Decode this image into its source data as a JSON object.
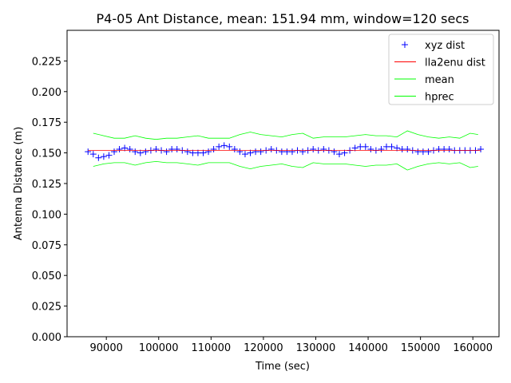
{
  "chart_data": {
    "type": "line",
    "title": "P4-05 Ant Distance, mean: 151.94 mm, window=120 secs",
    "xlabel": "Time (sec)",
    "ylabel": "Antenna Distance (m)",
    "xlim": [
      82500,
      165000
    ],
    "ylim": [
      0.0,
      0.25
    ],
    "xticks": [
      90000,
      100000,
      110000,
      120000,
      130000,
      140000,
      150000,
      160000
    ],
    "xtick_labels": [
      "90000",
      "100000",
      "110000",
      "120000",
      "130000",
      "140000",
      "150000",
      "160000"
    ],
    "yticks": [
      0.0,
      0.025,
      0.05,
      0.075,
      0.1,
      0.125,
      0.15,
      0.175,
      0.2,
      0.225
    ],
    "ytick_labels": [
      "0.000",
      "0.025",
      "0.050",
      "0.075",
      "0.100",
      "0.125",
      "0.150",
      "0.175",
      "0.200",
      "0.225"
    ],
    "grid": false,
    "legend_position": "top-right",
    "series": [
      {
        "name": "xyz dist",
        "marker": "+",
        "color": "#0000ff",
        "x": [
          86500,
          87500,
          88500,
          89500,
          90500,
          91500,
          92500,
          93500,
          94500,
          95500,
          96500,
          97500,
          98500,
          99500,
          100500,
          101500,
          102500,
          103500,
          104500,
          105500,
          106500,
          107500,
          108500,
          109500,
          110500,
          111500,
          112500,
          113500,
          114500,
          115500,
          116500,
          117500,
          118500,
          119500,
          120500,
          121500,
          122500,
          123500,
          124500,
          125500,
          126500,
          127500,
          128500,
          129500,
          130500,
          131500,
          132500,
          133500,
          134500,
          135500,
          136500,
          137500,
          138500,
          139500,
          140500,
          141500,
          142500,
          143500,
          144500,
          145500,
          146500,
          147500,
          148500,
          149500,
          150500,
          151500,
          152500,
          153500,
          154500,
          155500,
          156500,
          157500,
          158500,
          159500,
          160500,
          161500
        ],
        "y": [
          0.151,
          0.149,
          0.146,
          0.147,
          0.148,
          0.151,
          0.153,
          0.154,
          0.153,
          0.151,
          0.15,
          0.151,
          0.152,
          0.153,
          0.152,
          0.151,
          0.153,
          0.153,
          0.152,
          0.151,
          0.15,
          0.15,
          0.15,
          0.151,
          0.153,
          0.155,
          0.156,
          0.155,
          0.153,
          0.151,
          0.149,
          0.15,
          0.151,
          0.151,
          0.152,
          0.153,
          0.152,
          0.151,
          0.151,
          0.151,
          0.152,
          0.151,
          0.152,
          0.153,
          0.152,
          0.153,
          0.152,
          0.151,
          0.149,
          0.15,
          0.152,
          0.154,
          0.155,
          0.155,
          0.153,
          0.152,
          0.153,
          0.155,
          0.155,
          0.154,
          0.153,
          0.153,
          0.152,
          0.151,
          0.151,
          0.151,
          0.152,
          0.153,
          0.153,
          0.153,
          0.152,
          0.152,
          0.152,
          0.152,
          0.152,
          0.153
        ]
      },
      {
        "name": "lla2enu dist",
        "color": "#ff0000",
        "x": [
          86500,
          90000,
          95000,
          100000,
          105000,
          110000,
          115000,
          120000,
          125000,
          130000,
          135000,
          140000,
          145000,
          150000,
          155000,
          161500
        ],
        "y": [
          0.152,
          0.152,
          0.152,
          0.152,
          0.152,
          0.152,
          0.152,
          0.152,
          0.152,
          0.152,
          0.152,
          0.152,
          0.152,
          0.152,
          0.152,
          0.152
        ]
      },
      {
        "name": "mean",
        "color": "#00ff00",
        "x": [
          87500,
          89500,
          91500,
          93500,
          95500,
          97500,
          99500,
          101500,
          103500,
          105500,
          107500,
          109500,
          111500,
          113500,
          115500,
          117500,
          119500,
          121500,
          123500,
          125500,
          127500,
          129500,
          131500,
          133500,
          135500,
          137500,
          139500,
          141500,
          143500,
          145500,
          147500,
          149500,
          151500,
          153500,
          155500,
          157500,
          159500,
          161000
        ],
        "y": [
          0.166,
          0.164,
          0.162,
          0.162,
          0.164,
          0.162,
          0.161,
          0.162,
          0.162,
          0.163,
          0.164,
          0.162,
          0.162,
          0.162,
          0.165,
          0.167,
          0.165,
          0.164,
          0.163,
          0.165,
          0.166,
          0.162,
          0.163,
          0.163,
          0.163,
          0.164,
          0.165,
          0.164,
          0.164,
          0.163,
          0.168,
          0.165,
          0.163,
          0.162,
          0.163,
          0.162,
          0.166,
          0.165
        ]
      },
      {
        "name": "hprec",
        "color": "#00ff00",
        "x": [
          87500,
          89500,
          91500,
          93500,
          95500,
          97500,
          99500,
          101500,
          103500,
          105500,
          107500,
          109500,
          111500,
          113500,
          115500,
          117500,
          119500,
          121500,
          123500,
          125500,
          127500,
          129500,
          131500,
          133500,
          135500,
          137500,
          139500,
          141500,
          143500,
          145500,
          147500,
          149500,
          151500,
          153500,
          155500,
          157500,
          159500,
          161000
        ],
        "y": [
          0.139,
          0.141,
          0.142,
          0.142,
          0.14,
          0.142,
          0.143,
          0.142,
          0.142,
          0.141,
          0.14,
          0.142,
          0.142,
          0.142,
          0.139,
          0.137,
          0.139,
          0.14,
          0.141,
          0.139,
          0.138,
          0.142,
          0.141,
          0.141,
          0.141,
          0.14,
          0.139,
          0.14,
          0.14,
          0.141,
          0.136,
          0.139,
          0.141,
          0.142,
          0.141,
          0.142,
          0.138,
          0.139
        ]
      }
    ]
  }
}
